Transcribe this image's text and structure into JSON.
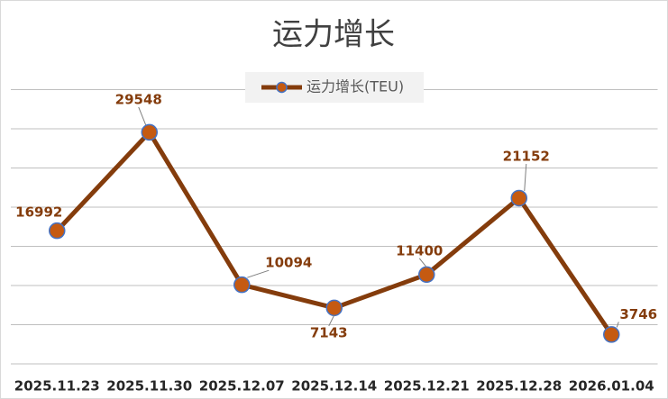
{
  "chart_data": {
    "type": "line",
    "title": "运力增长",
    "categories": [
      "2025.11.23",
      "2025.11.30",
      "2025.12.07",
      "2025.12.14",
      "2025.12.21",
      "2025.12.28",
      "2026.01.04"
    ],
    "series": [
      {
        "name": "运力增长(TEU)",
        "line_color": "#843c0c",
        "marker_color": "#c55a11",
        "marker_edge_color": "#4472c4",
        "label_color": "#843c0c",
        "values": [
          16992,
          29548,
          10094,
          7143,
          11400,
          21152,
          3746
        ]
      }
    ],
    "ylim": [
      0,
      35000
    ],
    "yticks": [
      0,
      5000,
      10000,
      15000,
      20000,
      25000,
      30000,
      35000
    ],
    "grid": true,
    "show_ytick_labels": false,
    "legend": "top"
  }
}
